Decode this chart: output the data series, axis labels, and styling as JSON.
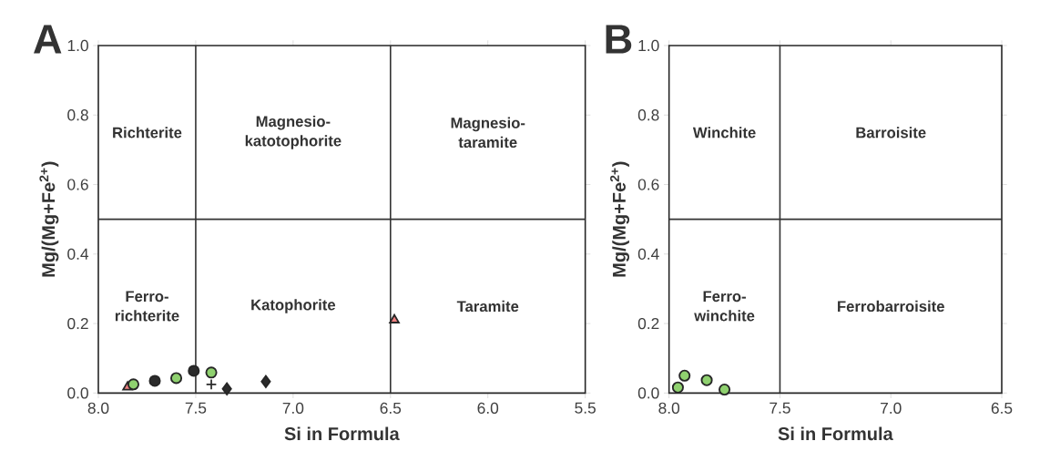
{
  "chart_data": [
    {
      "type": "scatter",
      "title": "A",
      "xlabel": "Si in Formula",
      "ylabel": "Mg/(Mg+Fe$^{2+}$)",
      "xlim": [
        8.0,
        5.5
      ],
      "ylim": [
        0.0,
        1.0
      ],
      "xticks": [
        {
          "value": 8.0,
          "label": "8.0"
        },
        {
          "value": 7.5,
          "label": "7.5"
        },
        {
          "value": 7.0,
          "label": "7.0"
        },
        {
          "value": 6.5,
          "label": "6.5"
        },
        {
          "value": 6.0,
          "label": "6.0"
        },
        {
          "value": 5.5,
          "label": "5.5"
        }
      ],
      "yticks": [
        {
          "value": 0.0,
          "label": "0.0"
        },
        {
          "value": 0.2,
          "label": "0.2"
        },
        {
          "value": 0.4,
          "label": "0.4"
        },
        {
          "value": 0.6,
          "label": "0.6"
        },
        {
          "value": 0.8,
          "label": "0.8"
        },
        {
          "value": 1.0,
          "label": "1.0"
        }
      ],
      "ref_lines": [
        {
          "axis": "x",
          "value": 7.5,
          "color": "#333333"
        },
        {
          "axis": "x",
          "value": 6.5,
          "color": "#333333"
        },
        {
          "axis": "y",
          "value": 0.5,
          "color": "#333333"
        }
      ],
      "annotations": [
        "Richterite",
        "Magnesio-katotophorite",
        "Magnesio-taramite",
        "Ferro-richterite",
        "Katophorite",
        "Taramite"
      ],
      "series": [
        {
          "marker": "triangle",
          "color": "#f08080",
          "x": [
            7.85,
            6.48
          ],
          "values": [
            0.017,
            0.21
          ]
        },
        {
          "marker": "circle",
          "color": "#2b2b2b",
          "x": [
            7.71,
            7.51
          ],
          "values": [
            0.035,
            0.064
          ]
        },
        {
          "marker": "circle",
          "color": "#8fd16f",
          "x": [
            7.82,
            7.6,
            7.42
          ],
          "values": [
            0.025,
            0.043,
            0.059
          ]
        },
        {
          "marker": "diamond",
          "color": "#2b2b2b",
          "x": [
            7.34,
            7.14
          ],
          "values": [
            0.012,
            0.033
          ]
        },
        {
          "marker": "cross",
          "color": "#2b2b2b",
          "x": [
            7.42
          ],
          "values": [
            0.025
          ]
        }
      ]
    },
    {
      "type": "scatter",
      "title": "B",
      "xlabel": "Si in Formula",
      "ylabel": "Mg/(Mg+Fe$^{2+}$)",
      "xlim": [
        8.0,
        6.5
      ],
      "ylim": [
        0.0,
        1.0
      ],
      "xticks": [
        {
          "value": 8.0,
          "label": "8.0"
        },
        {
          "value": 7.5,
          "label": "7.5"
        },
        {
          "value": 7.0,
          "label": "7.0"
        },
        {
          "value": 6.5,
          "label": "6.5"
        }
      ],
      "yticks": [
        {
          "value": 0.0,
          "label": "0.0"
        },
        {
          "value": 0.2,
          "label": "0.2"
        },
        {
          "value": 0.4,
          "label": "0.4"
        },
        {
          "value": 0.6,
          "label": "0.6"
        },
        {
          "value": 0.8,
          "label": "0.8"
        },
        {
          "value": 1.0,
          "label": "1.0"
        }
      ],
      "ref_lines": [
        {
          "axis": "x",
          "value": 7.5,
          "color": "#333333"
        },
        {
          "axis": "y",
          "value": 0.5,
          "color": "#333333"
        }
      ],
      "annotations": [
        "Winchite",
        "Barroisite",
        "Ferro-winchite",
        "Ferrobarroisite"
      ],
      "series": [
        {
          "marker": "circle",
          "color": "#8fd16f",
          "x": [
            7.96,
            7.93,
            7.83,
            7.75
          ],
          "values": [
            0.016,
            0.05,
            0.037,
            0.01
          ]
        }
      ]
    }
  ]
}
